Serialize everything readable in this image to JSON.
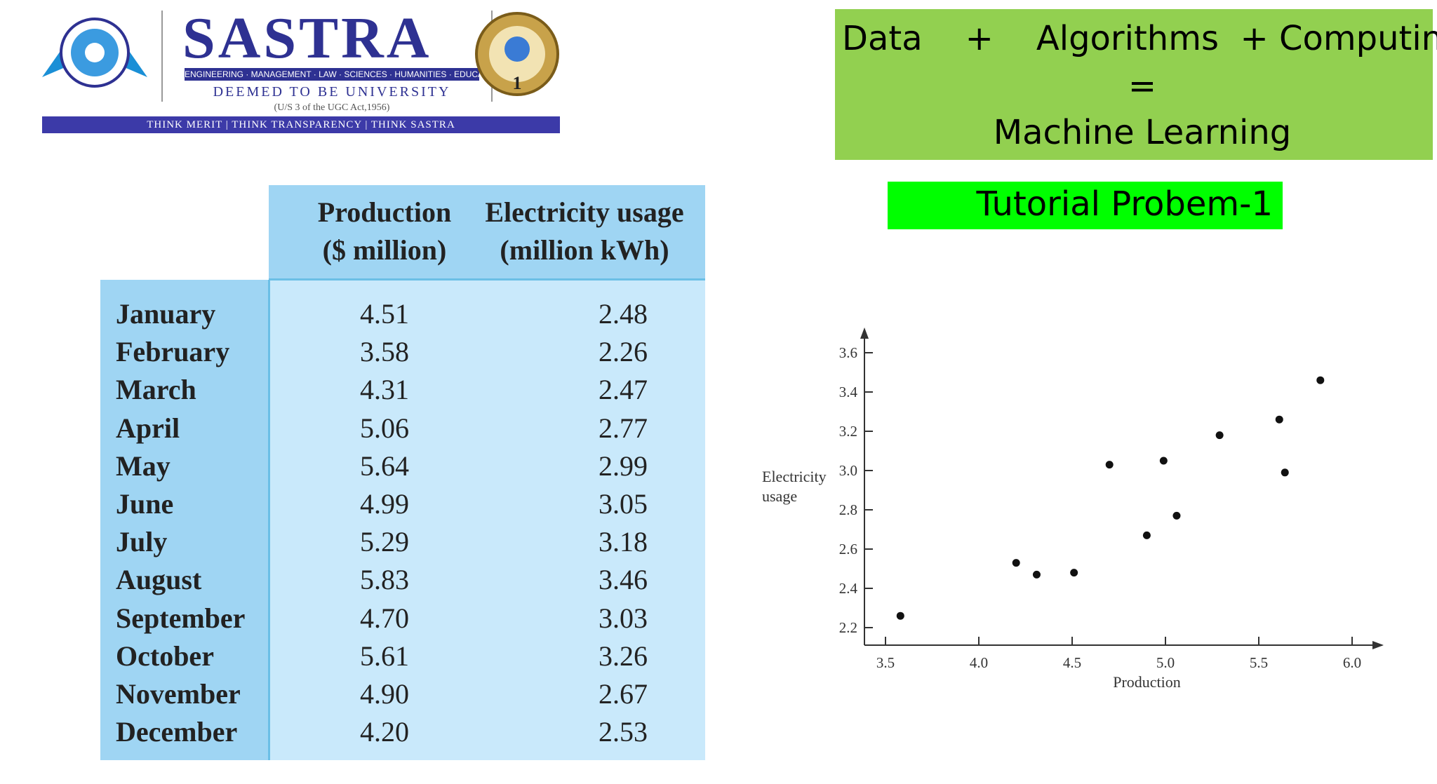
{
  "logo": {
    "name": "SASTRA",
    "subline": "ENGINEERING · MANAGEMENT · LAW · SCIENCES · HUMANITIES · EDUCATION",
    "deemed": "DEEMED TO BE UNIVERSITY",
    "act": "(U/S 3 of the UGC Act,1956)",
    "tagline": "THINK MERIT | THINK TRANSPARENCY | THINK SASTRA"
  },
  "equation": {
    "line1": "Data    +    Algorithms  + Computing",
    "line2": "=",
    "line3": "Machine Learning"
  },
  "tutorial_label": "Tutorial Probem-1",
  "table": {
    "col_production": [
      "Production",
      "($ million)"
    ],
    "col_electricity": [
      "Electricity usage",
      "(million kWh)"
    ],
    "rows": [
      {
        "month": "January",
        "production": "4.51",
        "electricity": "2.48"
      },
      {
        "month": "February",
        "production": "3.58",
        "electricity": "2.26"
      },
      {
        "month": "March",
        "production": "4.31",
        "electricity": "2.47"
      },
      {
        "month": "April",
        "production": "5.06",
        "electricity": "2.77"
      },
      {
        "month": "May",
        "production": "5.64",
        "electricity": "2.99"
      },
      {
        "month": "June",
        "production": "4.99",
        "electricity": "3.05"
      },
      {
        "month": "July",
        "production": "5.29",
        "electricity": "3.18"
      },
      {
        "month": "August",
        "production": "5.83",
        "electricity": "3.46"
      },
      {
        "month": "September",
        "production": "4.70",
        "electricity": "3.03"
      },
      {
        "month": "October",
        "production": "5.61",
        "electricity": "3.26"
      },
      {
        "month": "November",
        "production": "4.90",
        "electricity": "2.67"
      },
      {
        "month": "December",
        "production": "4.20",
        "electricity": "2.53"
      }
    ]
  },
  "chart_data": {
    "type": "scatter",
    "xlabel": "Production",
    "ylabel": [
      "Electricity",
      "usage"
    ],
    "xlim": [
      3.5,
      6.0
    ],
    "ylim": [
      2.2,
      3.6
    ],
    "xticks": [
      "3.5",
      "4.0",
      "4.5",
      "5.0",
      "5.5",
      "6.0"
    ],
    "yticks": [
      "2.2",
      "2.4",
      "2.6",
      "2.8",
      "3.0",
      "3.2",
      "3.4",
      "3.6"
    ],
    "grid": false,
    "points": [
      {
        "x": 4.51,
        "y": 2.48
      },
      {
        "x": 3.58,
        "y": 2.26
      },
      {
        "x": 4.31,
        "y": 2.47
      },
      {
        "x": 5.06,
        "y": 2.77
      },
      {
        "x": 5.64,
        "y": 2.99
      },
      {
        "x": 4.99,
        "y": 3.05
      },
      {
        "x": 5.29,
        "y": 3.18
      },
      {
        "x": 5.83,
        "y": 3.46
      },
      {
        "x": 4.7,
        "y": 3.03
      },
      {
        "x": 5.61,
        "y": 3.26
      },
      {
        "x": 4.9,
        "y": 2.67
      },
      {
        "x": 4.2,
        "y": 2.53
      }
    ]
  }
}
